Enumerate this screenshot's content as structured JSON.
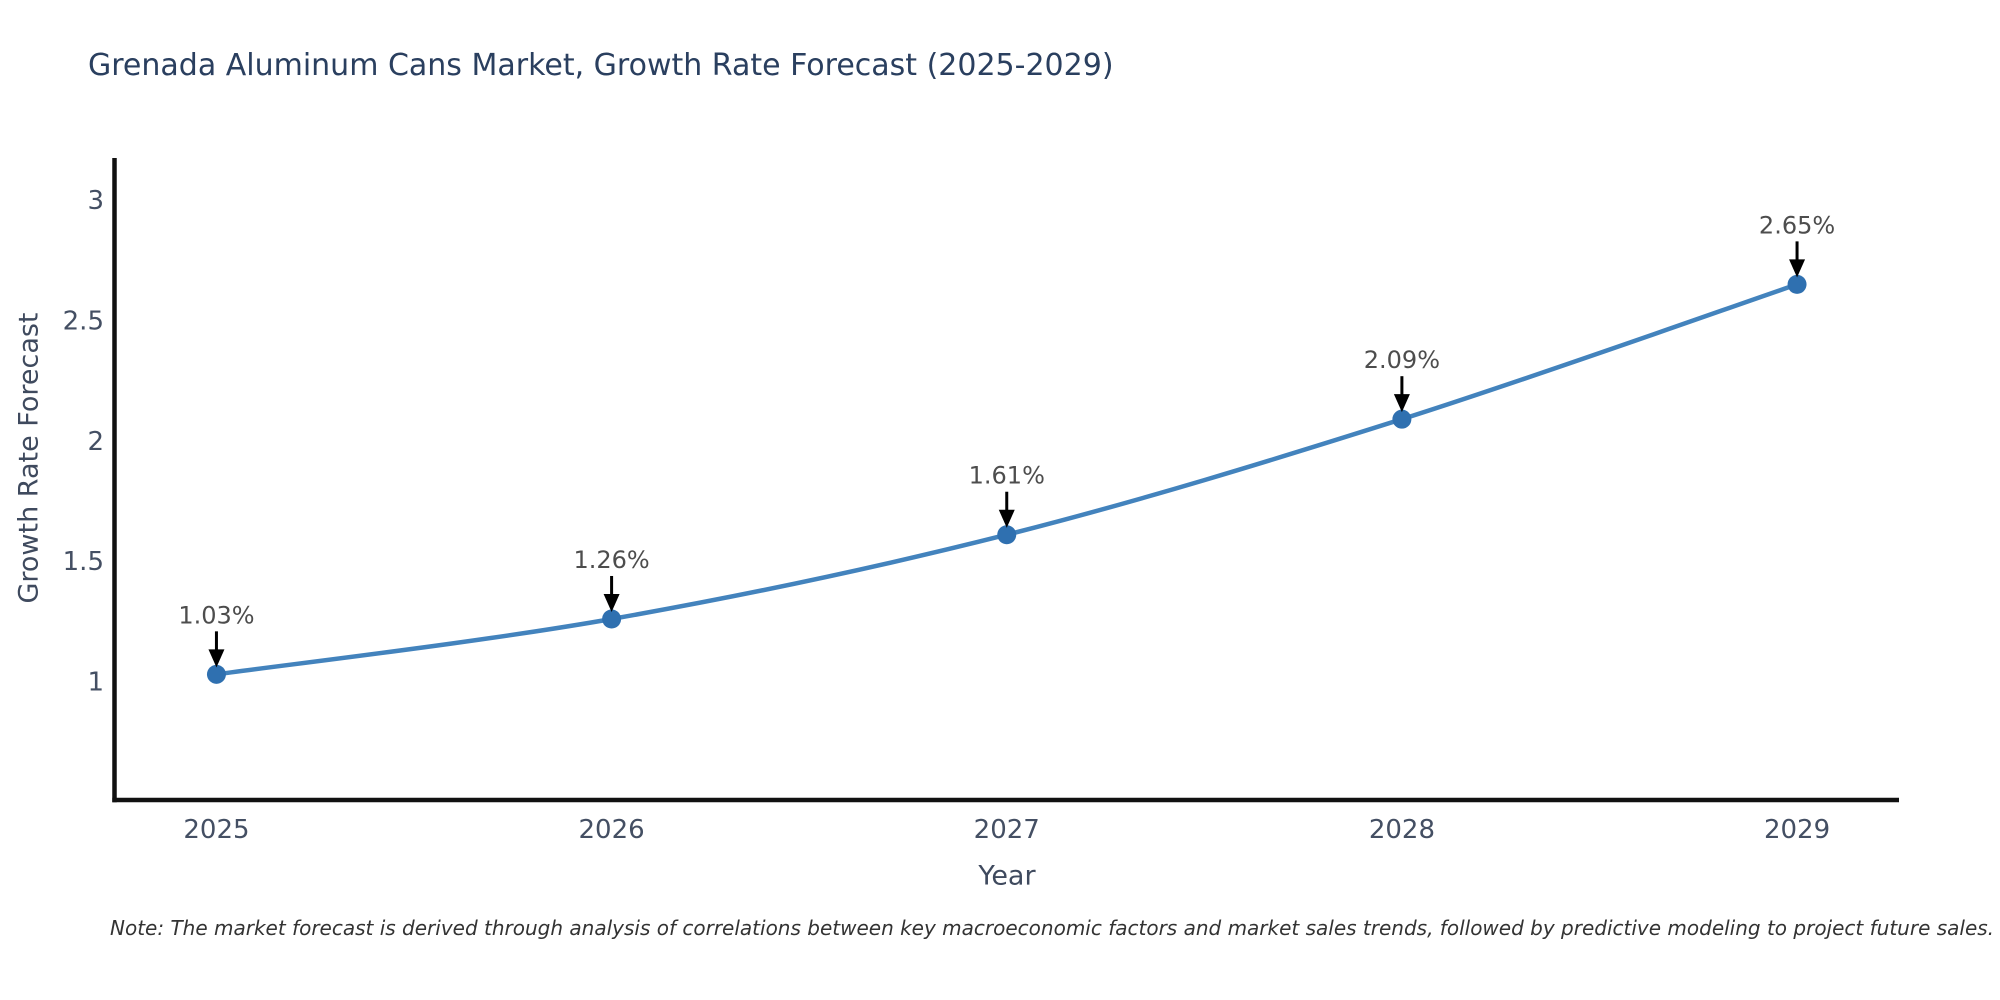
{
  "chart": {
    "title": "Grenada Aluminum Cans Market, Growth Rate Forecast (2025-2029)",
    "x_axis_label": "Year",
    "y_axis_label": "Growth Rate Forecast",
    "note": "Note: The market forecast is derived through analysis of correlations between key macroeconomic factors and market sales trends, followed by predictive modeling to project future sales."
  },
  "chart_data": {
    "type": "line",
    "title": "Grenada Aluminum Cans Market, Growth Rate Forecast (2025-2029)",
    "xlabel": "Year",
    "ylabel": "Growth Rate Forecast",
    "x": [
      2025,
      2026,
      2027,
      2028,
      2029
    ],
    "y": [
      1.03,
      1.26,
      1.61,
      2.09,
      2.65
    ],
    "point_labels": [
      "1.03%",
      "1.26%",
      "1.61%",
      "2.09%",
      "2.65%"
    ],
    "x_tick_labels": [
      "2025",
      "2026",
      "2027",
      "2028",
      "2029"
    ],
    "y_tick_values": [
      1,
      1.5,
      2,
      2.5,
      3
    ],
    "y_tick_labels": [
      "1",
      "1.5",
      "2",
      "2.5",
      "3"
    ],
    "xlim": [
      2024.742,
      2029.258
    ],
    "ylim": [
      0.508,
      3.175
    ],
    "grid": false,
    "legend": "none",
    "line_shape": "spline",
    "colors": {
      "line": "#4383bd",
      "marker": "#2f70b0",
      "axis": "#111111",
      "tick_text": "#444f63",
      "title_text": "#2a3f5f",
      "annotation_text": "#4d4d4d",
      "annotation_arrow": "#000000",
      "note_text": "#333333",
      "background": "#ffffff"
    }
  }
}
